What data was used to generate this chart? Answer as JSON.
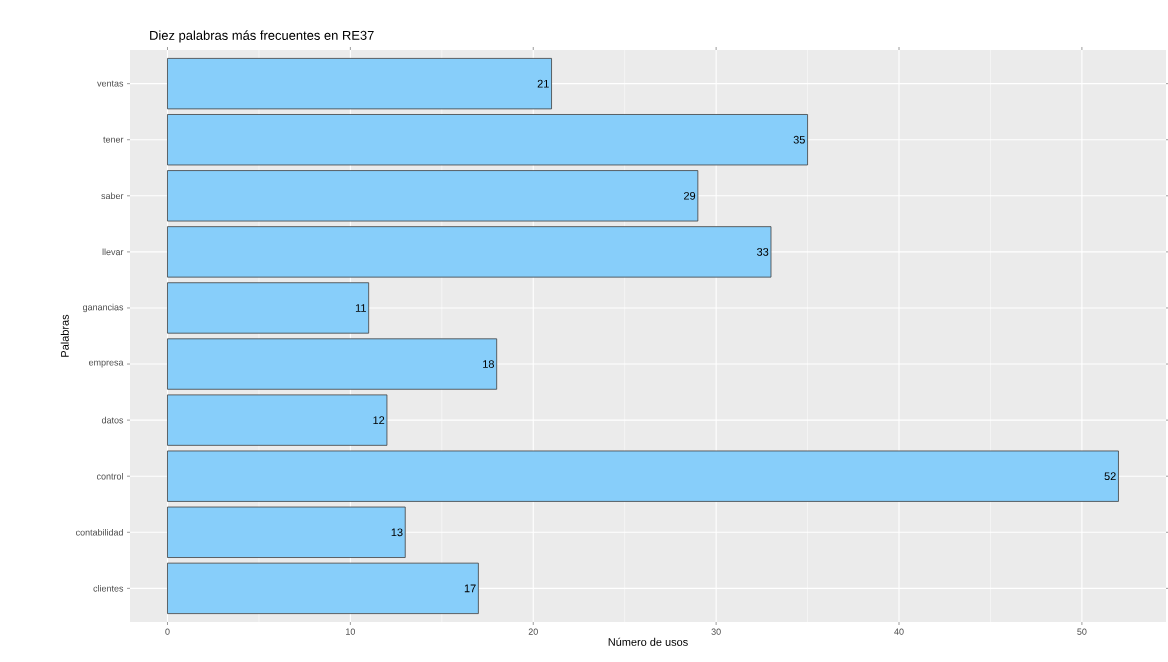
{
  "chart_data": {
    "type": "bar",
    "orientation": "horizontal",
    "title": "Diez palabras más frecuentes en RE37",
    "xlabel": "Número de usos",
    "ylabel": "Palabras",
    "categories": [
      "ventas",
      "tener",
      "saber",
      "llevar",
      "ganancias",
      "empresa",
      "datos",
      "control",
      "contabilidad",
      "clientes"
    ],
    "values": [
      21,
      35,
      29,
      33,
      11,
      18,
      12,
      52,
      13,
      17
    ],
    "color": "#87cefa",
    "data_labels": true,
    "grid": true,
    "xlim": [
      -2.05,
      54.6
    ],
    "xticks": [
      0,
      10,
      20,
      30,
      40,
      50
    ]
  }
}
